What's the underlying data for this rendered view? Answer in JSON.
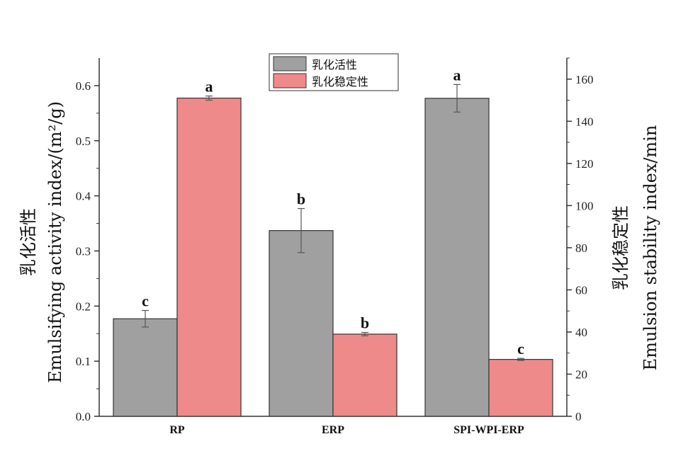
{
  "chart_data": {
    "type": "bar",
    "categories": [
      "RP",
      "ERP",
      "SPI-WPI-ERP"
    ],
    "series": [
      {
        "name": "乳化活性",
        "axis": "left",
        "color": "#a0a0a0",
        "values": [
          0.177,
          0.337,
          0.577
        ],
        "errors": [
          0.015,
          0.04,
          0.025
        ],
        "letters": [
          "c",
          "b",
          "a"
        ]
      },
      {
        "name": "乳化稳定性",
        "axis": "right",
        "color": "#ef8a8a",
        "values": [
          151,
          39,
          27
        ],
        "errors": [
          1,
          0.8,
          0.5
        ],
        "letters": [
          "a",
          "b",
          "c"
        ]
      }
    ],
    "left_axis": {
      "label_cn": "乳化活性",
      "label_en": "Emulsifying activity index/(m²/g)",
      "ylim": [
        0,
        0.65
      ],
      "ticks": [
        "0.0",
        "0.1",
        "0.2",
        "0.3",
        "0.4",
        "0.5",
        "0.6"
      ]
    },
    "right_axis": {
      "label_cn": "乳化稳定性",
      "label_en": "Emulsion stability index/min",
      "ylim": [
        0,
        170
      ],
      "ticks": [
        "0",
        "20",
        "40",
        "60",
        "80",
        "100",
        "120",
        "140",
        "160"
      ]
    },
    "legend_position": "top-center",
    "grid": false
  }
}
